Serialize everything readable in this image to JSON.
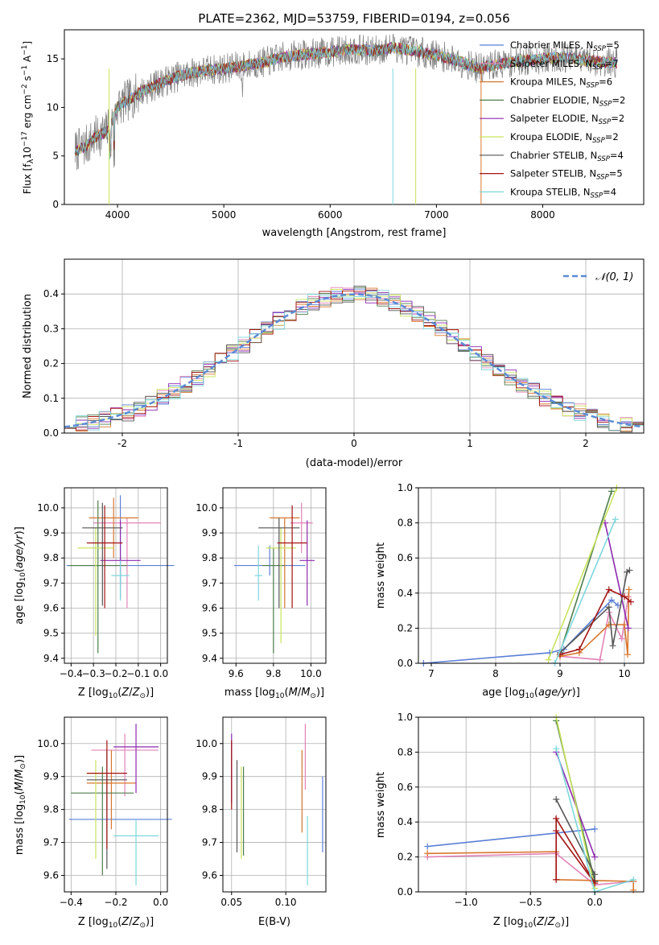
{
  "title": "PLATE=2362, MJD=53759, FIBERID=0194, z=0.056",
  "colors": {
    "chabrier_miles": "#5b7fd6",
    "salpeter_miles": "#e283b7",
    "kroupa_miles": "#d9772e",
    "chabrier_elodie": "#4f7d4b",
    "salpeter_elodie": "#8e2ab0",
    "kroupa_elodie": "#c9e45c",
    "chabrier_stelib": "#555555",
    "salpeter_stelib": "#a31212",
    "kroupa_stelib": "#7dd7dc",
    "normal_curve": "#5b8bd6",
    "grid": "#b0b0b0"
  },
  "chart_data": [
    {
      "type": "line",
      "id": "spectrum",
      "title": "PLATE=2362, MJD=53759, FIBERID=0194, z=0.056",
      "xlabel": "wavelength [Angstrom, rest frame]",
      "ylabel": "Flux [f_λ 10^-17 erg cm^-2 s^-1 A^-1]",
      "xlim": [
        3500,
        8950
      ],
      "ylim": [
        0,
        18
      ],
      "xticks": [
        4000,
        5000,
        6000,
        7000,
        8000
      ],
      "yticks": [
        0,
        5,
        10,
        15
      ],
      "grid": false,
      "legend": "top-right",
      "legend_entries": [
        {
          "label": "Chabrier MILES, N_SSP=5",
          "color": "#5b7fd6"
        },
        {
          "label": "Salpeter MILES, N_SSP=7",
          "color": "#e283b7"
        },
        {
          "label": "Kroupa MILES, N_SSP=6",
          "color": "#d9772e"
        },
        {
          "label": "Chabrier ELODIE, N_SSP=2",
          "color": "#4f7d4b"
        },
        {
          "label": "Salpeter ELODIE, N_SSP=2",
          "color": "#8e2ab0"
        },
        {
          "label": "Kroupa ELODIE, N_SSP=2",
          "color": "#c9e45c"
        },
        {
          "label": "Chabrier STELIB, N_SSP=4",
          "color": "#555555"
        },
        {
          "label": "Salpeter STELIB, N_SSP=5",
          "color": "#a31212"
        },
        {
          "label": "Kroupa STELIB, N_SSP=4",
          "color": "#7dd7dc"
        }
      ],
      "continuum": {
        "x": [
          3600,
          3700,
          3800,
          3900,
          4000,
          4200,
          4400,
          4600,
          4800,
          5000,
          5200,
          5400,
          5600,
          5800,
          6000,
          6200,
          6400,
          6600,
          6800,
          7000,
          7200,
          7400,
          7600,
          7800,
          8000,
          8200,
          8400,
          8700
        ],
        "y": [
          5.5,
          6.0,
          7.0,
          7.5,
          10.0,
          11.5,
          12.5,
          13.3,
          13.8,
          14.0,
          14.3,
          14.7,
          15.3,
          15.5,
          15.7,
          16.0,
          15.8,
          16.2,
          15.8,
          15.4,
          14.8,
          14.0,
          14.5,
          14.8,
          15.0,
          15.2,
          14.8,
          14.6
        ]
      }
    },
    {
      "type": "histogram",
      "id": "residuals",
      "xlabel": "(data-model)/error",
      "ylabel": "Normed distribution",
      "xlim": [
        -2.5,
        2.5
      ],
      "ylim": [
        0,
        0.5
      ],
      "xticks": [
        -2,
        -1,
        0,
        1,
        2
      ],
      "yticks": [
        0.0,
        0.1,
        0.2,
        0.3,
        0.4
      ],
      "grid": true,
      "legend": "top-right",
      "legend_entries": [
        {
          "label": "𝒩(0,1)",
          "color": "#5b8bd6",
          "style": "dashed"
        }
      ],
      "bin_width": 0.1
    },
    {
      "type": "errorbar",
      "id": "age-vs-z",
      "xlabel": "Z [log10(Z/Z⊙)]",
      "ylabel": "age [log10(age/yr)]",
      "xlim": [
        -0.43,
        0.03
      ],
      "ylim": [
        9.38,
        10.08
      ],
      "xticks": [
        -0.4,
        -0.3,
        -0.2,
        -0.1,
        0.0
      ],
      "yticks": [
        9.4,
        9.5,
        9.6,
        9.7,
        9.8,
        9.9,
        10.0
      ],
      "grid": true,
      "points": [
        {
          "x": -0.18,
          "xerr": 0.24,
          "y": 9.77,
          "ylo": 9.69,
          "yhi": 10.05,
          "color": "#5b7fd6"
        },
        {
          "x": -0.15,
          "xerr": 0.15,
          "y": 9.94,
          "ylo": 9.6,
          "yhi": 9.96,
          "color": "#e283b7"
        },
        {
          "x": -0.21,
          "xerr": 0.11,
          "y": 9.96,
          "ylo": 9.8,
          "yhi": 10.04,
          "color": "#d9772e"
        },
        {
          "x": -0.28,
          "xerr": 0.13,
          "y": 9.77,
          "ylo": 9.42,
          "yhi": 10.03,
          "color": "#4f7d4b"
        },
        {
          "x": -0.18,
          "xerr": 0.09,
          "y": 9.79,
          "ylo": 9.64,
          "yhi": 9.95,
          "color": "#8e2ab0"
        },
        {
          "x": -0.29,
          "xerr": 0.08,
          "y": 9.84,
          "ylo": 9.49,
          "yhi": 9.92,
          "color": "#c9e45c"
        },
        {
          "x": -0.26,
          "xerr": 0.09,
          "y": 9.92,
          "ylo": 9.61,
          "yhi": 10.02,
          "color": "#555555"
        },
        {
          "x": -0.25,
          "xerr": 0.08,
          "y": 9.86,
          "ylo": 9.6,
          "yhi": 10.01,
          "color": "#a31212"
        },
        {
          "x": -0.18,
          "xerr": 0.04,
          "y": 9.73,
          "ylo": 9.63,
          "yhi": 9.79,
          "color": "#7dd7dc"
        }
      ]
    },
    {
      "type": "errorbar",
      "id": "age-vs-mass",
      "xlabel": "mass [log10(M/M⊙)]",
      "ylabel": "",
      "xlim": [
        9.53,
        10.08
      ],
      "ylim": [
        9.38,
        10.08
      ],
      "xticks": [
        9.6,
        9.8,
        10.0
      ],
      "yticks": [
        9.4,
        9.5,
        9.6,
        9.7,
        9.8,
        9.9,
        10.0
      ],
      "grid": true,
      "points": [
        {
          "x": 9.78,
          "xerr": 0.19,
          "y": 9.77,
          "ylo": 9.73,
          "yhi": 9.85,
          "color": "#5b7fd6"
        },
        {
          "x": 9.95,
          "xerr": 0.06,
          "y": 9.94,
          "ylo": 9.82,
          "yhi": 10.02,
          "color": "#e283b7"
        },
        {
          "x": 9.86,
          "xerr": 0.08,
          "y": 9.96,
          "ylo": 9.6,
          "yhi": 9.96,
          "color": "#d9772e"
        },
        {
          "x": 9.8,
          "xerr": 0.06,
          "y": 9.77,
          "ylo": 9.42,
          "yhi": 9.84,
          "color": "#4f7d4b"
        },
        {
          "x": 9.98,
          "xerr": 0.04,
          "y": 9.79,
          "ylo": 9.61,
          "yhi": 9.95,
          "color": "#8e2ab0"
        },
        {
          "x": 9.84,
          "xerr": 0.08,
          "y": 9.84,
          "ylo": 9.46,
          "yhi": 9.92,
          "color": "#c9e45c"
        },
        {
          "x": 9.83,
          "xerr": 0.11,
          "y": 9.92,
          "ylo": 9.6,
          "yhi": 9.96,
          "color": "#555555"
        },
        {
          "x": 9.9,
          "xerr": 0.08,
          "y": 9.86,
          "ylo": 9.6,
          "yhi": 10.01,
          "color": "#a31212"
        },
        {
          "x": 9.72,
          "xerr": 0.02,
          "y": 9.73,
          "ylo": 9.63,
          "yhi": 9.85,
          "color": "#7dd7dc"
        }
      ]
    },
    {
      "type": "line",
      "id": "massweight-vs-age",
      "xlabel": "age [log10(age/yr)]",
      "ylabel": "mass weight",
      "xlim": [
        6.8,
        10.3
      ],
      "ylim": [
        0,
        1
      ],
      "xticks": [
        7,
        8,
        9,
        10
      ],
      "yticks": [
        0.0,
        0.2,
        0.4,
        0.6,
        0.8,
        1.0
      ],
      "grid": true,
      "series": [
        {
          "color": "#5b7fd6",
          "x": [
            6.88,
            8.84,
            9.06,
            9.8,
            9.9
          ],
          "y": [
            0.0,
            0.06,
            0.08,
            0.36,
            0.33
          ]
        },
        {
          "color": "#e283b7",
          "x": [
            9.0,
            9.62,
            9.76,
            9.96,
            10.06
          ],
          "y": [
            0.04,
            0.02,
            0.29,
            0.14,
            0.38
          ]
        },
        {
          "color": "#d9772e",
          "x": [
            9.0,
            9.3,
            9.76,
            10.0,
            10.05,
            10.07
          ],
          "y": [
            0.04,
            0.06,
            0.22,
            0.22,
            0.05,
            0.42
          ]
        },
        {
          "color": "#4f7d4b",
          "x": [
            9.0,
            9.8
          ],
          "y": [
            0.06,
            0.98
          ]
        },
        {
          "color": "#8e2ab0",
          "x": [
            9.7,
            10.06
          ],
          "y": [
            0.8,
            0.2
          ]
        },
        {
          "color": "#c9e45c",
          "x": [
            8.82,
            9.88
          ],
          "y": [
            0.02,
            1.0
          ]
        },
        {
          "color": "#555555",
          "x": [
            9.0,
            9.76,
            9.82,
            10.04,
            10.08
          ],
          "y": [
            0.06,
            0.32,
            0.1,
            0.52,
            0.53
          ]
        },
        {
          "color": "#a31212",
          "x": [
            9.0,
            9.3,
            9.76,
            10.0,
            10.1
          ],
          "y": [
            0.05,
            0.08,
            0.42,
            0.38,
            0.35
          ]
        },
        {
          "color": "#7dd7dc",
          "x": [
            8.92,
            9.86
          ],
          "y": [
            0.0,
            0.82
          ]
        }
      ]
    },
    {
      "type": "errorbar",
      "id": "mass-vs-z",
      "xlabel": "Z [log10(Z/Z⊙)]",
      "ylabel": "mass [log10(M/M⊙)]",
      "xlim": [
        -0.43,
        0.03
      ],
      "ylim": [
        9.55,
        10.08
      ],
      "xticks": [
        -0.4,
        -0.2,
        0.0
      ],
      "yticks": [
        9.6,
        9.7,
        9.8,
        9.9,
        10.0
      ],
      "grid": true,
      "points": [
        {
          "x": -0.18,
          "xerr": 0.23,
          "y": 9.77,
          "ylo": 9.77,
          "yhi": 9.77,
          "color": "#5b7fd6"
        },
        {
          "x": -0.16,
          "xerr": 0.15,
          "y": 9.98,
          "ylo": 9.84,
          "yhi": 10.03,
          "color": "#e283b7"
        },
        {
          "x": -0.22,
          "xerr": 0.11,
          "y": 9.88,
          "ylo": 9.74,
          "yhi": 9.98,
          "color": "#d9772e"
        },
        {
          "x": -0.26,
          "xerr": 0.14,
          "y": 9.85,
          "ylo": 9.6,
          "yhi": 9.93,
          "color": "#4f7d4b"
        },
        {
          "x": -0.11,
          "xerr": 0.1,
          "y": 9.99,
          "ylo": 9.85,
          "yhi": 10.06,
          "color": "#8e2ab0"
        },
        {
          "x": -0.29,
          "xerr": 0.04,
          "y": 9.91,
          "ylo": 9.65,
          "yhi": 9.95,
          "color": "#c9e45c"
        },
        {
          "x": -0.24,
          "xerr": 0.09,
          "y": 9.89,
          "ylo": 9.62,
          "yhi": 9.98,
          "color": "#555555"
        },
        {
          "x": -0.24,
          "xerr": 0.09,
          "y": 9.91,
          "ylo": 9.68,
          "yhi": 10.01,
          "color": "#a31212"
        },
        {
          "x": -0.11,
          "xerr": 0.1,
          "y": 9.72,
          "ylo": 9.57,
          "yhi": 9.77,
          "color": "#7dd7dc"
        }
      ]
    },
    {
      "type": "errorbar",
      "id": "mass-vs-ebv",
      "xlabel": "E(B-V)",
      "ylabel": "",
      "xlim": [
        0.042,
        0.137
      ],
      "ylim": [
        9.55,
        10.08
      ],
      "xticks": [
        0.05,
        0.1
      ],
      "yticks": [
        9.6,
        9.7,
        9.8,
        9.9,
        10.0
      ],
      "grid": true,
      "points": [
        {
          "x": 0.134,
          "y": 9.78,
          "ylo": 9.67,
          "yhi": 9.9,
          "color": "#5b7fd6"
        },
        {
          "x": 0.118,
          "y": 9.93,
          "ylo": 9.86,
          "yhi": 10.06,
          "color": "#e283b7"
        },
        {
          "x": 0.115,
          "y": 9.83,
          "ylo": 9.73,
          "yhi": 9.98,
          "color": "#d9772e"
        },
        {
          "x": 0.061,
          "y": 9.82,
          "ylo": 9.66,
          "yhi": 9.93,
          "color": "#4f7d4b"
        },
        {
          "x": 0.05,
          "y": 9.93,
          "ylo": 9.82,
          "yhi": 10.03,
          "color": "#8e2ab0"
        },
        {
          "x": 0.059,
          "y": 9.78,
          "ylo": 9.65,
          "yhi": 9.93,
          "color": "#c9e45c"
        },
        {
          "x": 0.055,
          "y": 9.84,
          "ylo": 9.67,
          "yhi": 9.95,
          "color": "#555555"
        },
        {
          "x": 0.05,
          "y": 9.88,
          "ylo": 9.8,
          "yhi": 10.01,
          "color": "#a31212"
        },
        {
          "x": 0.12,
          "y": 9.72,
          "ylo": 9.57,
          "yhi": 9.78,
          "color": "#7dd7dc"
        }
      ]
    },
    {
      "type": "line",
      "id": "massweight-vs-z",
      "xlabel": "Z [log10(Z/Z⊙)]",
      "ylabel": "mass weight",
      "xlim": [
        -1.37,
        0.38
      ],
      "ylim": [
        0,
        1
      ],
      "xticks": [
        -1.0,
        -0.5,
        0.0
      ],
      "yticks": [
        0.0,
        0.2,
        0.4,
        0.6,
        0.8,
        1.0
      ],
      "grid": true,
      "series": [
        {
          "color": "#5b7fd6",
          "x": [
            -1.3,
            0.0
          ],
          "y": [
            0.26,
            0.36
          ]
        },
        {
          "color": "#e283b7",
          "x": [
            -1.3,
            -0.3,
            0.0,
            0.3
          ],
          "y": [
            0.2,
            0.22,
            0.04,
            0.06
          ]
        },
        {
          "color": "#d9772e",
          "x": [
            -1.3,
            -0.3,
            -0.3,
            0.3,
            0.3
          ],
          "y": [
            0.22,
            0.23,
            0.07,
            0.06,
            0.01
          ]
        },
        {
          "color": "#4f7d4b",
          "x": [
            -0.3,
            0.0,
            0.0
          ],
          "y": [
            0.98,
            0.06,
            0.06
          ]
        },
        {
          "color": "#8e2ab0",
          "x": [
            -0.3,
            0.0
          ],
          "y": [
            0.8,
            0.2
          ]
        },
        {
          "color": "#c9e45c",
          "x": [
            -0.3,
            0.0
          ],
          "y": [
            1.0,
            0.02
          ]
        },
        {
          "color": "#555555",
          "x": [
            -0.3,
            0.0,
            0.0
          ],
          "y": [
            0.53,
            0.1,
            0.06
          ]
        },
        {
          "color": "#a31212",
          "x": [
            -0.3,
            0.0,
            -0.3,
            -0.3
          ],
          "y": [
            0.35,
            0.05,
            0.42,
            0.07
          ]
        },
        {
          "color": "#7dd7dc",
          "x": [
            -0.3,
            0.0,
            0.3
          ],
          "y": [
            0.82,
            0.0,
            0.07
          ]
        }
      ]
    }
  ],
  "labels": {
    "p1_xlabel": "wavelength [Angstrom, rest frame]",
    "p2_xlabel": "(data-model)/error",
    "p2_ylabel": "Normed distribution",
    "p5_ylabel": "mass weight",
    "p5_xlabel_pre": "age  [log",
    "p8_ylabel": "mass weight",
    "p7_xlabel": "E(B-V)"
  }
}
